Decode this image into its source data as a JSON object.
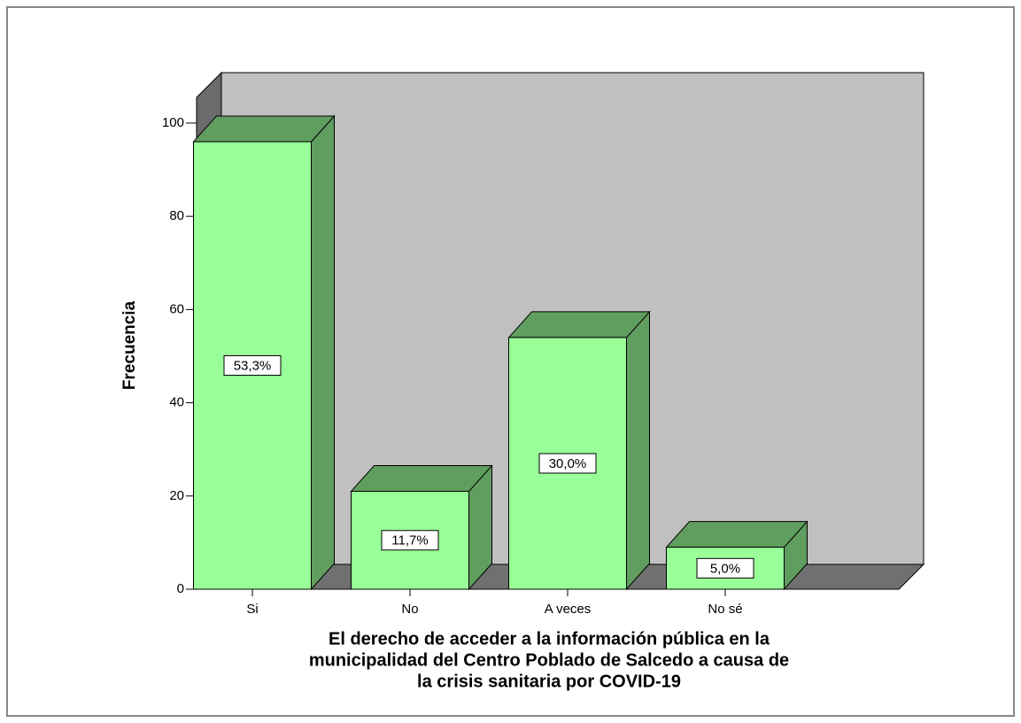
{
  "chart_data": {
    "type": "bar3d",
    "xlabel": [
      "El derecho de acceder a la información pública en la",
      "municipalidad del Centro Poblado de Salcedo a causa de",
      "la crisis sanitaria por COVID-19"
    ],
    "ylabel": "Frecuencia",
    "categories": [
      "Si",
      "No",
      "A veces",
      "No sé"
    ],
    "values": [
      96,
      21,
      54,
      9
    ],
    "data_labels": [
      "53,3%",
      "11,7%",
      "30,0%",
      "5,0%"
    ],
    "color": "#99ff99",
    "side_color": "#5f9e5f",
    "ylim": [
      0,
      105.5
    ],
    "yticks": [
      0,
      20,
      40,
      60,
      80,
      100
    ]
  }
}
